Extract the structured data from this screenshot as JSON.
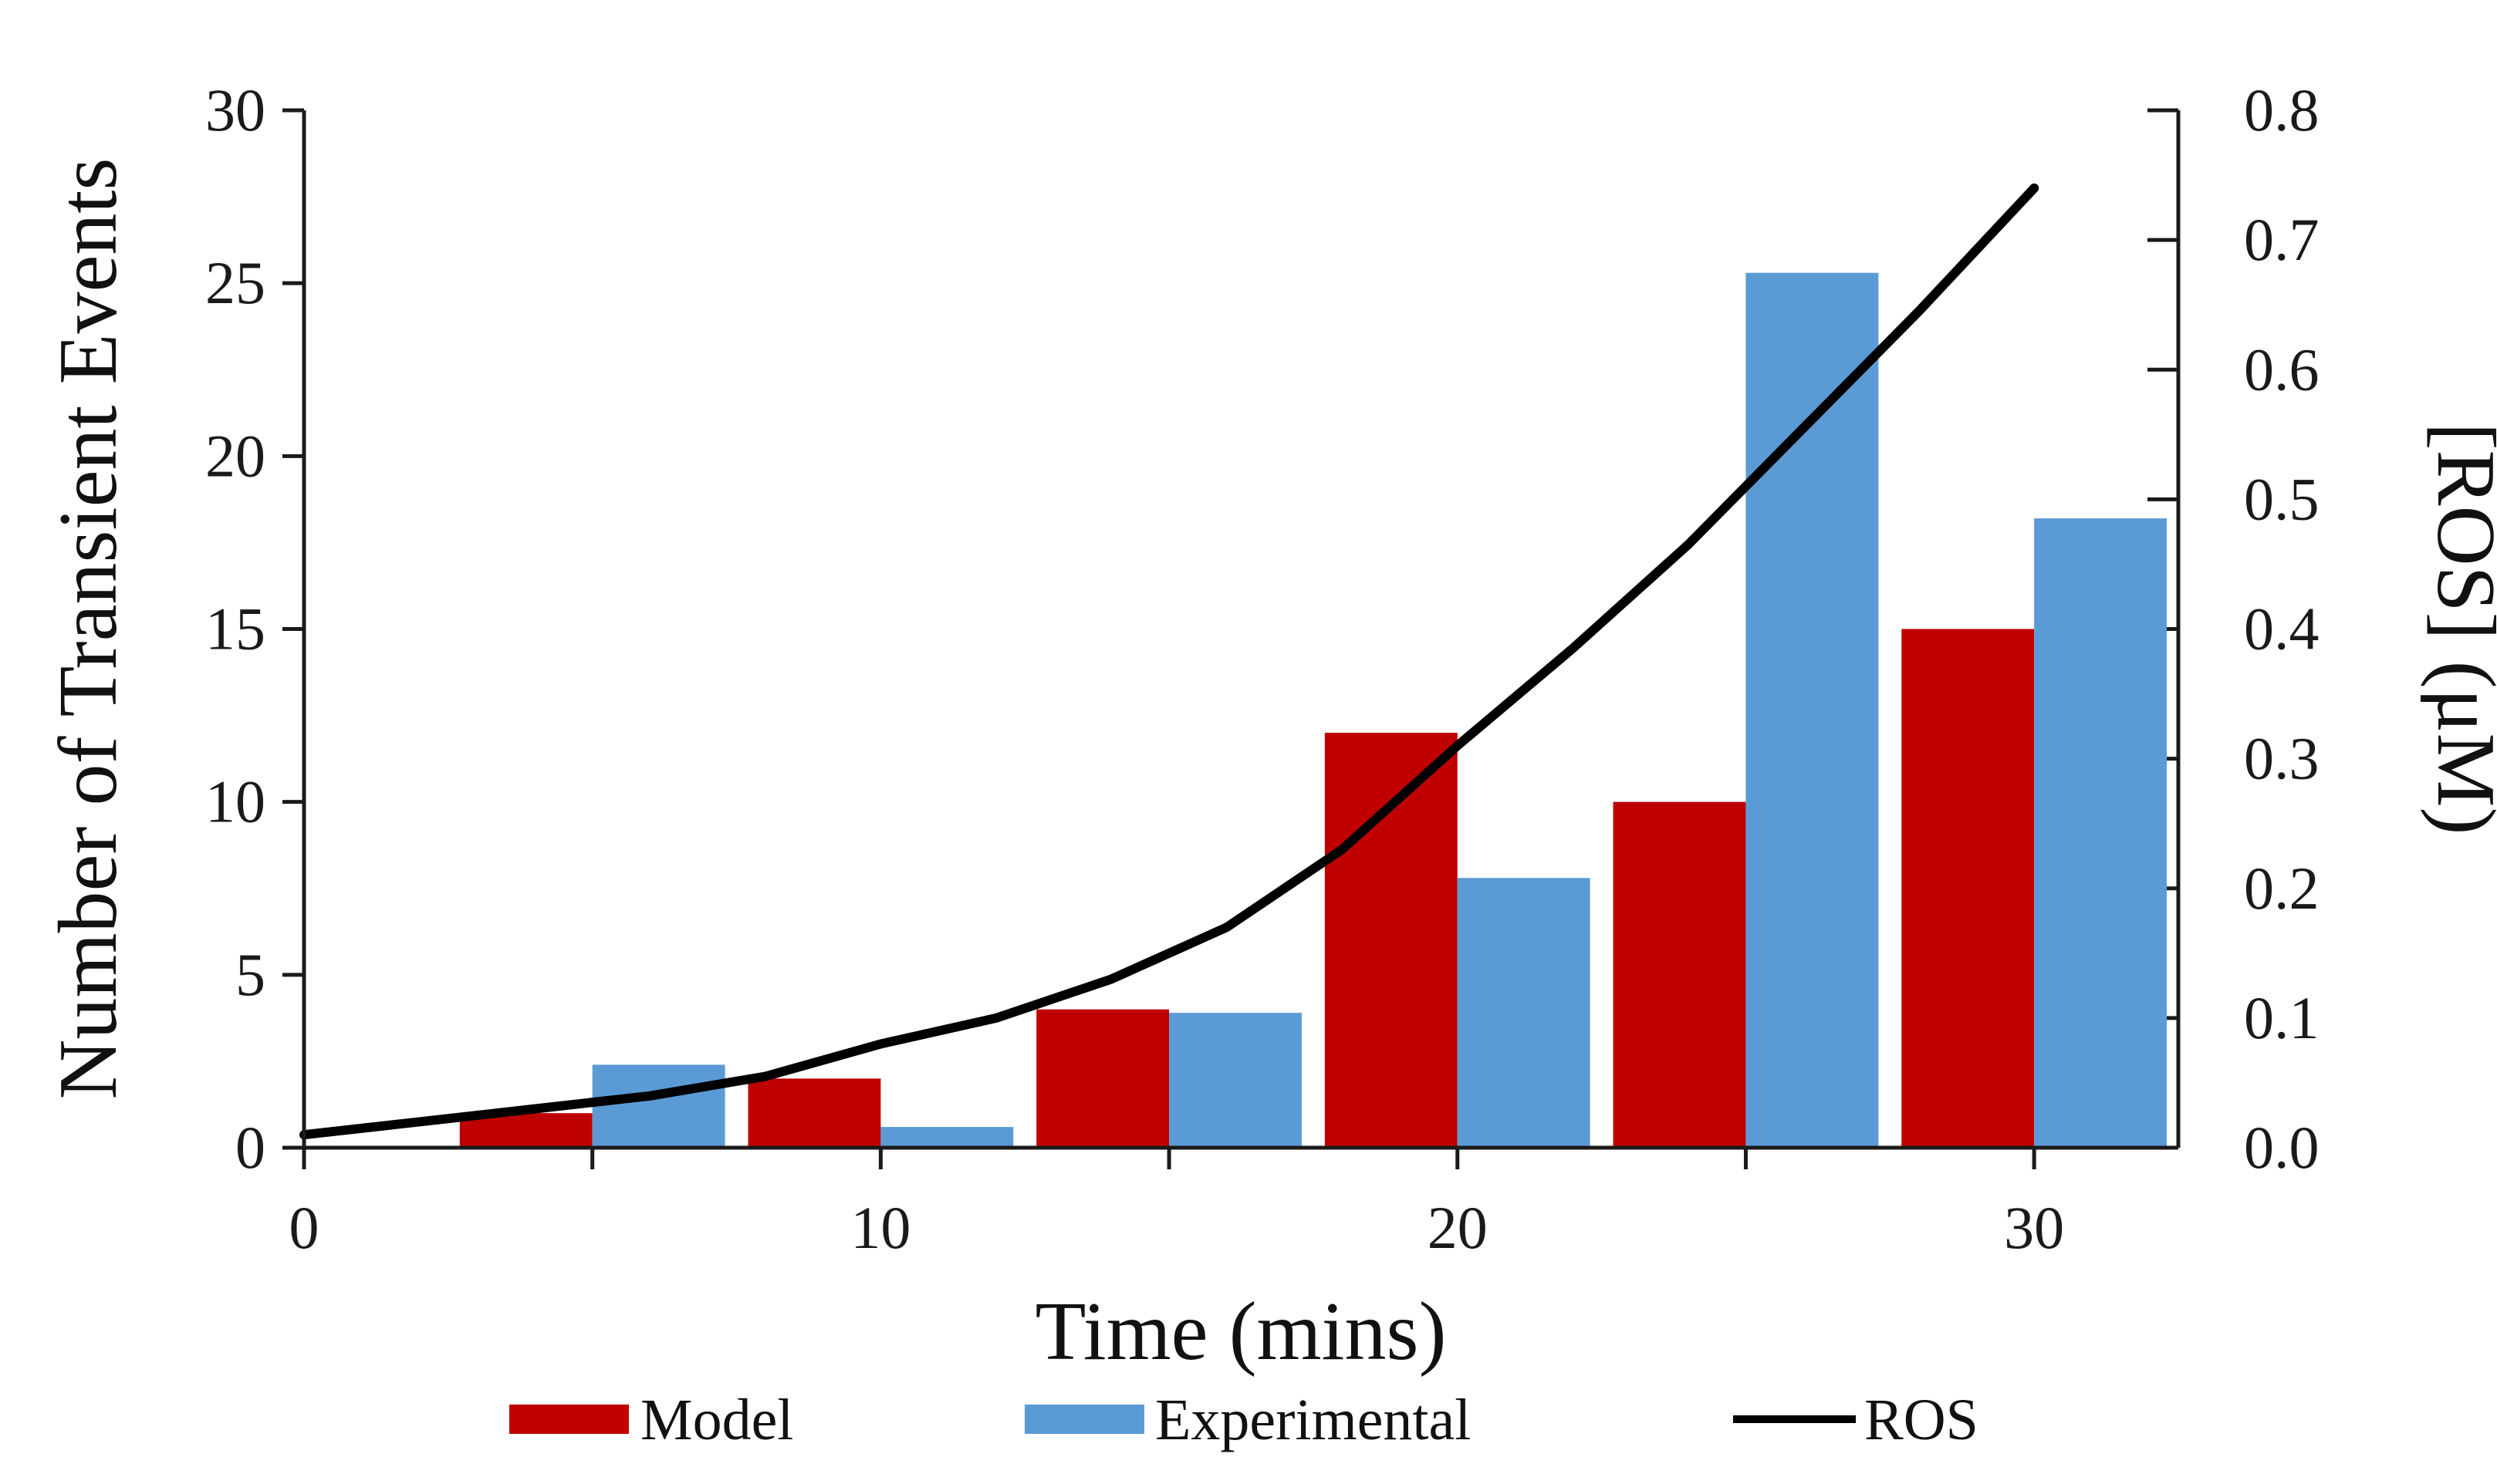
{
  "chart_data": {
    "type": "bar",
    "title": "",
    "xlabel": "Time (mins)",
    "ylabel": "Number of Transient Events",
    "y2label": "[ROS] (μM)",
    "xlim": [
      0,
      32.5
    ],
    "ylim": [
      0,
      30
    ],
    "y2lim": [
      0,
      0.8
    ],
    "xticks": [
      "0",
      "10",
      "20",
      "30"
    ],
    "yticks": [
      "0",
      "5",
      "10",
      "15",
      "20",
      "25",
      "30"
    ],
    "y2ticks": [
      "0.0",
      "0.1",
      "0.2",
      "0.3",
      "0.4",
      "0.5",
      "0.6",
      "0.7",
      "0.8"
    ],
    "series": [
      {
        "name": "Model",
        "kind": "bar",
        "color": "#c00000",
        "points": [
          {
            "start": 2.7,
            "end": 5.0,
            "value": 1.0
          },
          {
            "start": 7.7,
            "end": 10.0,
            "value": 2.0
          },
          {
            "start": 12.7,
            "end": 15.0,
            "value": 4.0
          },
          {
            "start": 17.7,
            "end": 20.0,
            "value": 12.0
          },
          {
            "start": 22.7,
            "end": 25.0,
            "value": 10.0
          },
          {
            "start": 27.7,
            "end": 30.0,
            "value": 15.0
          }
        ]
      },
      {
        "name": "Experimental",
        "kind": "bar",
        "color": "#5b9bd5",
        "points": [
          {
            "start": 5.0,
            "end": 7.3,
            "value": 2.4
          },
          {
            "start": 10.0,
            "end": 12.3,
            "value": 0.6
          },
          {
            "start": 15.0,
            "end": 17.3,
            "value": 3.9
          },
          {
            "start": 20.0,
            "end": 22.3,
            "value": 7.8
          },
          {
            "start": 25.0,
            "end": 27.3,
            "value": 25.3
          },
          {
            "start": 30.0,
            "end": 32.3,
            "value": 18.2
          }
        ]
      },
      {
        "name": "ROS",
        "kind": "line",
        "axis": "right",
        "color": "#000000",
        "x": [
          0,
          2,
          4,
          6,
          8,
          10,
          12,
          14,
          16,
          18,
          20,
          22,
          24,
          26,
          28,
          30
        ],
        "y": [
          0.01,
          0.02,
          0.03,
          0.04,
          0.055,
          0.08,
          0.1,
          0.13,
          0.17,
          0.23,
          0.31,
          0.385,
          0.465,
          0.555,
          0.645,
          0.74
        ]
      }
    ],
    "legend": {
      "position": "bottom",
      "items": [
        "Model",
        "Experimental",
        "ROS"
      ]
    }
  }
}
